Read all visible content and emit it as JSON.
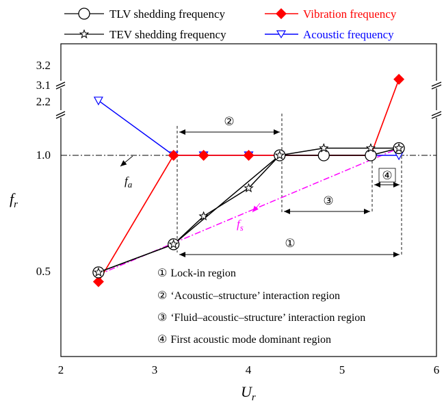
{
  "chart_data": {
    "type": "line",
    "xlabel": "U_r",
    "ylabel": "f_r",
    "xlim": [
      2,
      6
    ],
    "x_ticks": [
      "2",
      "3",
      "4",
      "5",
      "6"
    ],
    "y_ticks": [
      "0.5",
      "1.0",
      "2.2",
      "3.1",
      "3.2"
    ],
    "y_axis_breaks": [
      "between 1.0 and 2.2",
      "between 2.2 and 3.1"
    ],
    "series": [
      {
        "name": "TLV shedding frequency",
        "color": "#000000",
        "marker": "open-circle-with-star",
        "points": [
          [
            2.4,
            0.5
          ],
          [
            3.2,
            0.62
          ],
          [
            4.33,
            1.0
          ],
          [
            4.8,
            1.0
          ],
          [
            5.3,
            1.0
          ],
          [
            5.6,
            1.16
          ]
        ]
      },
      {
        "name": "TEV shedding frequency",
        "color": "#000000",
        "marker": "star",
        "points": [
          [
            2.4,
            0.5
          ],
          [
            3.2,
            0.62
          ],
          [
            3.52,
            0.74
          ],
          [
            4.0,
            0.86
          ],
          [
            4.33,
            1.0
          ],
          [
            4.8,
            1.16
          ],
          [
            5.3,
            1.16
          ],
          [
            5.6,
            1.16
          ]
        ]
      },
      {
        "name": "Vibration frequency",
        "color": "#ff0000",
        "marker": "filled-diamond",
        "points": [
          [
            2.4,
            0.46
          ],
          [
            3.2,
            1.0
          ],
          [
            3.52,
            1.0
          ],
          [
            4.0,
            1.0
          ],
          [
            4.33,
            1.0
          ],
          [
            4.8,
            1.0
          ],
          [
            5.3,
            1.0
          ],
          [
            5.6,
            3.13
          ]
        ]
      },
      {
        "name": "Acoustic frequency",
        "color": "#0000ff",
        "marker": "open-triangle-down",
        "points": [
          [
            2.4,
            2.24
          ],
          [
            3.2,
            1.0
          ],
          [
            3.52,
            1.0
          ],
          [
            4.0,
            1.0
          ],
          [
            4.33,
            1.0
          ],
          [
            4.8,
            1.0
          ],
          [
            5.3,
            1.0
          ],
          [
            5.6,
            1.0
          ]
        ]
      }
    ],
    "reference_line": {
      "y": 1.0,
      "style": "dash-dot",
      "color": "#000000"
    },
    "fits": [
      {
        "label": "f_s",
        "color": "#ff00ff",
        "style": "dash-dot",
        "from": [
          2.4,
          0.49
        ],
        "to": [
          5.6,
          1.16
        ]
      },
      {
        "label": "f_a",
        "color": "#000000",
        "style": "arrow",
        "points_to": "horizontal line y=1.0"
      }
    ],
    "regions": [
      {
        "id": "①",
        "label": "Lock-in region",
        "x_range": [
          3.2,
          5.6
        ]
      },
      {
        "id": "②",
        "label": "‘Acoustic–structure’ interaction region",
        "x_range": [
          3.2,
          4.33
        ]
      },
      {
        "id": "③",
        "label": "‘Fluid–acoustic–structure’ interaction region",
        "x_range": [
          4.33,
          5.3
        ]
      },
      {
        "id": "④",
        "label": "First acoustic mode dominant region",
        "x_range": [
          5.3,
          5.6
        ]
      }
    ],
    "legend_placement": "top"
  },
  "legend": {
    "tlv": "TLV shedding frequency",
    "tev": "TEV shedding frequency",
    "vib": "Vibration frequency",
    "aco": "Acoustic frequency"
  },
  "axes": {
    "x_main": "U",
    "x_sub": "r",
    "y_main": "f",
    "y_sub": "r"
  },
  "annotations": {
    "fa_main": "f",
    "fa_sub": "a",
    "fs_main": "f",
    "fs_sub": "s",
    "region_1_id": "①",
    "region_2_id": "②",
    "region_3_id": "③",
    "region_4_id": "④"
  },
  "region_legend": [
    {
      "id": "①",
      "text": "Lock-in region"
    },
    {
      "id": "②",
      "text": "‘Acoustic–structure’ interaction region"
    },
    {
      "id": "③",
      "text": "‘Fluid–acoustic–structure’ interaction region"
    },
    {
      "id": "④",
      "text": "First acoustic mode dominant region"
    }
  ],
  "colors": {
    "black": "#000000",
    "red": "#ff0000",
    "blue": "#0000ff",
    "magenta": "#ff00ff"
  }
}
